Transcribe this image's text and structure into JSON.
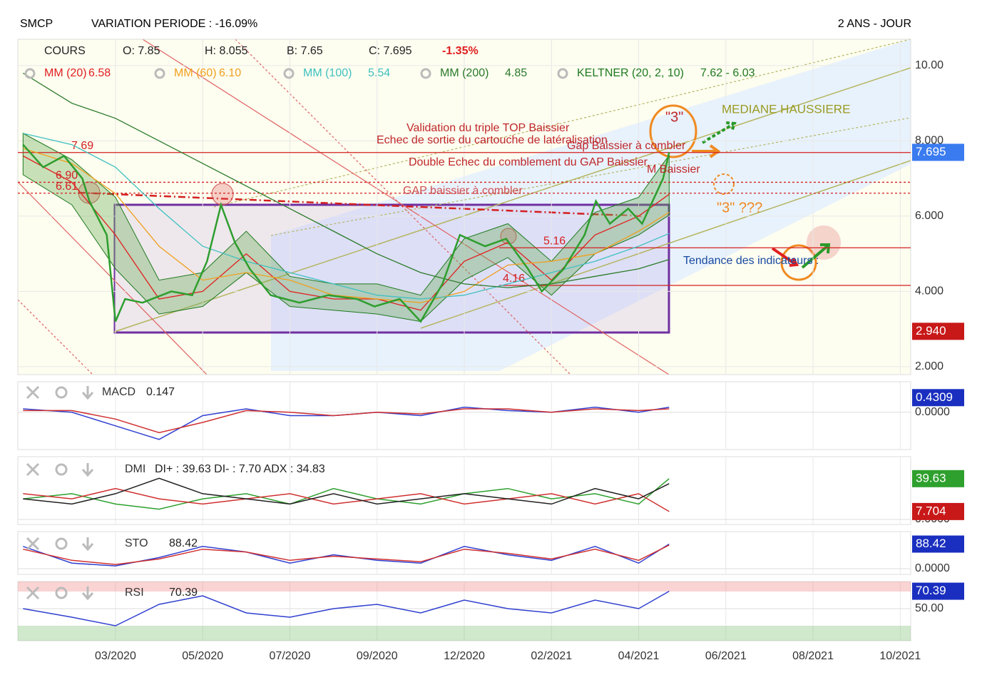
{
  "header": {
    "symbol": "SMCP",
    "variation": "VARIATION PERIODE : -16.09%",
    "period": "2 ANS - JOUR"
  },
  "chart_data": [
    {
      "type": "line",
      "xlim": [
        -1.12,
        9.12
      ],
      "xticks": [
        {
          "value": 0,
          "label": "03/2020"
        },
        {
          "value": 1,
          "label": "05/2020"
        },
        {
          "value": 2,
          "label": "07/2020"
        },
        {
          "value": 3,
          "label": "09/2020"
        },
        {
          "value": 4,
          "label": "12/2020"
        },
        {
          "value": 5,
          "label": "02/2021"
        },
        {
          "value": 6,
          "label": "04/2021"
        },
        {
          "value": 7,
          "label": "06/2021"
        },
        {
          "value": 8,
          "label": "08/2021"
        },
        {
          "value": 9,
          "label": "10/2021"
        }
      ],
      "ylim": [
        1.79,
        10.7
      ],
      "yticks": [
        {
          "value": 10,
          "label": "10.00"
        },
        {
          "value": 8,
          "label": "8.000"
        },
        {
          "value": 6,
          "label": "6.000"
        },
        {
          "value": 4,
          "label": "4.000"
        },
        {
          "value": 2,
          "label": "2.000"
        }
      ],
      "grid": true,
      "cours": {
        "name": "COURS",
        "ohlc": [
          "O: 7.85",
          "H: 8.055",
          "B: 7.65",
          "C: 7.695"
        ],
        "change": "-1.35%",
        "color": "#2e9e2e",
        "x": [
          -1.06,
          -0.83,
          -0.59,
          -0.38,
          -0.3,
          -0.1,
          0,
          0.11,
          0.31,
          0.64,
          0.88,
          1.05,
          1.21,
          1.37,
          1.54,
          1.78,
          2.11,
          2.44,
          2.77,
          2.97,
          3.26,
          3.5,
          3.75,
          3.95,
          4.24,
          4.48,
          4.73,
          4.89,
          5.14,
          5.38,
          5.51,
          5.67,
          5.88,
          6.04,
          6.2,
          6.28,
          6.35
        ],
        "values": [
          7.9,
          7.3,
          7.6,
          7.0,
          6.4,
          5.5,
          3.2,
          3.8,
          3.7,
          4.0,
          3.9,
          4.8,
          6.3,
          5.3,
          4.6,
          3.9,
          3.7,
          3.9,
          3.8,
          3.6,
          3.8,
          3.2,
          4.2,
          5.5,
          5.2,
          5.4,
          4.6,
          4.0,
          4.6,
          5.5,
          6.4,
          5.8,
          6.2,
          5.8,
          6.6,
          7.0,
          7.695
        ]
      },
      "keltner": {
        "name": "KELTNER (20, 2, 10)",
        "last": "7.62 - 6.03",
        "color": "#1f7a1f",
        "x": [
          -1.06,
          -0.5,
          0,
          0.5,
          1,
          1.5,
          2,
          2.5,
          3,
          3.5,
          4,
          4.5,
          5,
          5.5,
          6,
          6.35
        ],
        "upper": [
          8.2,
          7.5,
          6.5,
          4.3,
          4.5,
          5.6,
          4.4,
          4.2,
          4.2,
          3.9,
          5.4,
          5.8,
          4.8,
          6.1,
          6.5,
          7.62
        ],
        "lower": [
          7.1,
          6.3,
          4.6,
          3.4,
          3.6,
          4.5,
          3.6,
          3.5,
          3.4,
          3.2,
          4.3,
          4.9,
          3.9,
          5.0,
          5.5,
          6.03
        ]
      },
      "series": [
        {
          "name": "MM (20)",
          "last": "6.58",
          "color": "#e02020",
          "x": [
            -1.06,
            -0.5,
            0,
            0.5,
            1,
            1.5,
            2,
            2.5,
            3,
            3.5,
            4,
            4.5,
            5,
            5.5,
            6,
            6.35
          ],
          "values": [
            7.6,
            6.9,
            5.5,
            3.8,
            4.0,
            5.0,
            4.0,
            3.8,
            3.8,
            3.5,
            4.8,
            5.3,
            4.3,
            5.5,
            6.0,
            6.58
          ]
        },
        {
          "name": "MM (60)",
          "last": "6.10",
          "color": "#f0a020",
          "x": [
            -1.06,
            -0.5,
            0,
            0.5,
            1,
            1.5,
            2,
            2.5,
            3,
            3.5,
            4,
            4.5,
            5,
            5.5,
            6,
            6.35
          ],
          "values": [
            7.8,
            7.4,
            6.6,
            5.2,
            4.3,
            4.5,
            4.3,
            3.9,
            3.8,
            3.7,
            4.0,
            4.7,
            4.8,
            5.0,
            5.6,
            6.1
          ]
        },
        {
          "name": "MM (100)",
          "last": "5.54",
          "color": "#40c0c0",
          "x": [
            -1.06,
            -0.5,
            0,
            0.5,
            1,
            1.5,
            2,
            2.5,
            3,
            3.5,
            4,
            4.5,
            5,
            5.5,
            6,
            6.35
          ],
          "values": [
            8.2,
            7.9,
            7.3,
            6.2,
            5.2,
            4.8,
            4.5,
            4.2,
            3.9,
            3.8,
            3.9,
            4.2,
            4.5,
            4.8,
            5.2,
            5.54
          ]
        },
        {
          "name": "MM (200)",
          "last": "4.85",
          "color": "#2a7a2a",
          "x": [
            -1.06,
            -0.5,
            0,
            0.5,
            1,
            1.5,
            2,
            2.5,
            3,
            3.5,
            4,
            4.5,
            5,
            5.5,
            6,
            6.35
          ],
          "values": [
            9.8,
            9.0,
            8.6,
            8.0,
            7.4,
            6.8,
            6.2,
            5.6,
            5.0,
            4.5,
            4.2,
            4.1,
            4.2,
            4.4,
            4.6,
            4.85
          ]
        }
      ],
      "levels": [
        {
          "value": 7.69,
          "label": "7.69",
          "color": "#d42020"
        },
        {
          "value": 6.9,
          "label": "6.90",
          "color": "#d42020"
        },
        {
          "value": 6.61,
          "label": "6.61",
          "color": "#d42020"
        },
        {
          "value": 5.16,
          "label": "5.16",
          "color": "#d42020"
        },
        {
          "value": 4.16,
          "label": "4.16",
          "color": "#d42020"
        }
      ],
      "badges": [
        {
          "value": 7.695,
          "label": "7.695",
          "color": "#3a7bf0"
        },
        {
          "value": 2.94,
          "label": "2.940",
          "color": "#c81818"
        }
      ],
      "annotations": [
        {
          "text": "Validation du triple TOP Baissier",
          "color": "#c0282a"
        },
        {
          "text": "Echec de sortie du cartouche de latéralisation",
          "color": "#c0282a"
        },
        {
          "text": "Gap Baissier à combler",
          "color": "#c0282a"
        },
        {
          "text": "Double Echec du comblement du GAP Baissier",
          "color": "#c0282a"
        },
        {
          "text": "M Baissier",
          "color": "#c0282a"
        },
        {
          "text": "GAP baissier à combler",
          "color": "#d05050"
        },
        {
          "text": "MEDIANE HAUSSIERE",
          "color": "#9a9a20"
        },
        {
          "text": "\"3\"",
          "color": "#c0282a"
        },
        {
          "text": "\"3\" ???",
          "color": "#f08a20"
        },
        {
          "text": "Tendance des indicateurs :",
          "color": "#1a4aa0"
        }
      ]
    },
    {
      "type": "line",
      "title": "MACD",
      "readout": "0.147",
      "ylim": [
        -1.1,
        0.9
      ],
      "yticks": [
        {
          "value": 0,
          "label": "0.0000"
        }
      ],
      "x": [
        -1.06,
        -0.5,
        0,
        0.5,
        1,
        1.5,
        2,
        2.5,
        3,
        3.5,
        4,
        4.5,
        5,
        5.5,
        6,
        6.35
      ],
      "series": [
        {
          "color": "#3040d0",
          "values": [
            0.1,
            0.0,
            -0.4,
            -0.8,
            -0.1,
            0.1,
            -0.1,
            -0.1,
            0.0,
            -0.1,
            0.15,
            0.05,
            0.0,
            0.15,
            0.0,
            0.147
          ]
        },
        {
          "color": "#d03030",
          "values": [
            0.05,
            0.05,
            -0.2,
            -0.6,
            -0.3,
            0.05,
            0.0,
            -0.1,
            0.0,
            -0.05,
            0.1,
            0.1,
            0.0,
            0.1,
            0.05,
            0.1
          ]
        }
      ],
      "badges": [
        {
          "value": 0.4309,
          "label": "0.4309",
          "color": "#1a2fbf"
        }
      ]
    },
    {
      "type": "line",
      "title": "DMI",
      "readout": "DI+ : 39.63 DI- : 7.70 ADX : 34.83",
      "ylim": [
        0,
        61
      ],
      "yticks": [
        {
          "value": 0,
          "label": "0.0000"
        }
      ],
      "x": [
        -1.06,
        -0.5,
        0,
        0.5,
        1,
        1.5,
        2,
        2.5,
        3,
        3.5,
        4,
        4.5,
        5,
        5.5,
        6,
        6.35
      ],
      "series": [
        {
          "color": "#2ea02e",
          "values": [
            20,
            25,
            15,
            10,
            20,
            25,
            15,
            30,
            20,
            15,
            25,
            30,
            20,
            25,
            15,
            39.63
          ]
        },
        {
          "color": "#d03030",
          "values": [
            25,
            20,
            30,
            20,
            15,
            20,
            25,
            15,
            20,
            25,
            15,
            20,
            25,
            15,
            25,
            7.7
          ]
        },
        {
          "color": "#202020",
          "values": [
            20,
            15,
            25,
            40,
            25,
            20,
            15,
            25,
            15,
            20,
            25,
            20,
            15,
            30,
            20,
            34.83
          ]
        }
      ],
      "badges": [
        {
          "value": 39.63,
          "label": "39.63",
          "color": "#2ea02e"
        },
        {
          "value": 7.704,
          "label": "7.704",
          "color": "#c81818"
        }
      ]
    },
    {
      "type": "line",
      "title": "STO",
      "readout": "88.42",
      "ylim": [
        0,
        100
      ],
      "yticks": [
        {
          "value": 0,
          "label": "0.0000"
        }
      ],
      "x": [
        -1.06,
        -0.5,
        0,
        0.5,
        1,
        1.5,
        2,
        2.5,
        3,
        3.5,
        4,
        4.5,
        5,
        5.5,
        6,
        6.35
      ],
      "series": [
        {
          "color": "#3040d0",
          "values": [
            80,
            20,
            10,
            40,
            80,
            60,
            20,
            50,
            30,
            20,
            80,
            50,
            30,
            80,
            20,
            88.42
          ]
        },
        {
          "color": "#d03030",
          "values": [
            70,
            30,
            15,
            35,
            70,
            60,
            30,
            45,
            35,
            25,
            70,
            55,
            35,
            70,
            30,
            85
          ]
        }
      ],
      "badges": [
        {
          "value": 88.42,
          "label": "88.42",
          "color": "#1a2fbf"
        }
      ]
    },
    {
      "type": "line",
      "title": "RSI",
      "readout": "70.39",
      "ylim": [
        12.5,
        81.7
      ],
      "yticks": [
        {
          "value": 50,
          "label": "50.00"
        }
      ],
      "bands": [
        30,
        70
      ],
      "x": [
        -1.06,
        -0.5,
        0,
        0.5,
        1,
        1.5,
        2,
        2.5,
        3,
        3.5,
        4,
        4.5,
        5,
        5.5,
        6,
        6.35
      ],
      "series": [
        {
          "color": "#3040d0",
          "values": [
            50,
            40,
            30,
            55,
            65,
            45,
            40,
            50,
            55,
            45,
            60,
            50,
            45,
            60,
            50,
            70.39
          ]
        }
      ],
      "badges": [
        {
          "value": 70.39,
          "label": "70.39",
          "color": "#1a2fbf"
        }
      ]
    }
  ]
}
